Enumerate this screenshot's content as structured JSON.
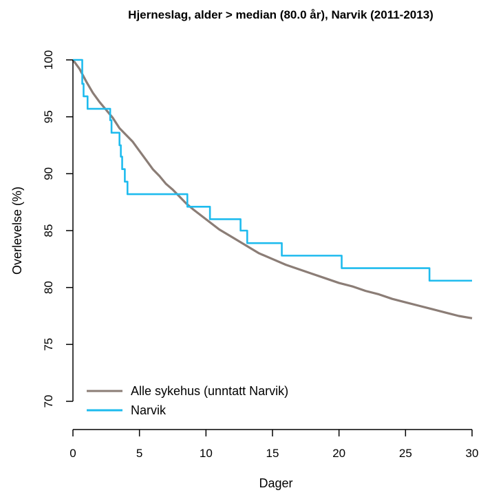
{
  "chart_data": {
    "type": "line",
    "title": "Hjerneslag, alder > median (80.0 år), Narvik (2011-2013)",
    "xlabel": "Dager",
    "ylabel": "Overlevelse (%)",
    "xlim": [
      0,
      30
    ],
    "ylim": [
      70,
      100
    ],
    "xticks": [
      0,
      5,
      10,
      15,
      20,
      25,
      30
    ],
    "yticks": [
      70,
      75,
      80,
      85,
      90,
      95,
      100
    ],
    "grid": false,
    "legend_position": "bottom-left",
    "series": [
      {
        "name": "Alle sykehus (unntatt Narvik)",
        "color": "#8b7d76",
        "style": "smooth",
        "x": [
          0,
          0.5,
          1,
          1.5,
          2,
          2.5,
          3,
          3.5,
          4,
          4.5,
          5,
          5.5,
          6,
          6.5,
          7,
          7.5,
          8,
          8.5,
          9,
          10,
          11,
          12,
          13,
          14,
          15,
          16,
          17,
          18,
          19,
          20,
          21,
          22,
          23,
          24,
          25,
          26,
          27,
          28,
          29,
          30
        ],
        "values": [
          100,
          99.2,
          98.1,
          97.1,
          96.3,
          95.6,
          94.9,
          94.0,
          93.4,
          92.8,
          92.0,
          91.2,
          90.4,
          89.8,
          89.1,
          88.6,
          88.0,
          87.4,
          86.9,
          86.0,
          85.1,
          84.4,
          83.7,
          83.0,
          82.5,
          82.0,
          81.6,
          81.2,
          80.8,
          80.4,
          80.1,
          79.7,
          79.4,
          79.0,
          78.7,
          78.4,
          78.1,
          77.8,
          77.5,
          77.3
        ]
      },
      {
        "name": "Narvik",
        "color": "#1ebbee",
        "style": "step",
        "x": [
          0,
          0.7,
          0.8,
          1.1,
          2.8,
          2.9,
          3.5,
          3.6,
          3.7,
          3.9,
          4.1,
          8.6,
          10.3,
          12.6,
          13.1,
          15.7,
          20.2,
          26.8,
          30
        ],
        "values": [
          100,
          97.9,
          96.8,
          95.7,
          94.7,
          93.6,
          92.5,
          91.5,
          90.4,
          89.3,
          88.2,
          87.1,
          86.0,
          85.0,
          83.9,
          82.8,
          81.7,
          80.6,
          80.6
        ]
      }
    ]
  }
}
